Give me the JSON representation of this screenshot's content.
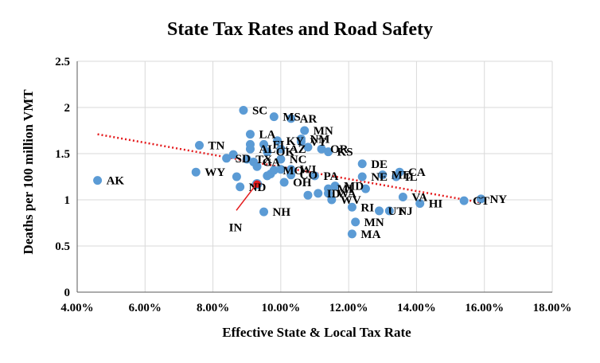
{
  "colors": {
    "point": "#5b9bd5",
    "highlight": "#e41a1c",
    "trendline": "#e41a1c",
    "grid": "#d9d9d9"
  },
  "chart_data": {
    "type": "scatter",
    "title": "State Tax Rates and Road Safety",
    "xlabel": "Effective State & Local Tax Rate",
    "ylabel": "Deaths per 100 million VMT",
    "xlim": [
      0.04,
      0.18
    ],
    "ylim": [
      0,
      2.5
    ],
    "x_ticks": [
      "4.00%",
      "6.00%",
      "8.00%",
      "10.00%",
      "12.00%",
      "14.00%",
      "16.00%",
      "18.00%"
    ],
    "y_ticks": [
      "0",
      "0.5",
      "1",
      "1.5",
      "2",
      "2.5"
    ],
    "grid": true,
    "trendline": {
      "style": "dotted",
      "x": [
        0.046,
        0.159
      ],
      "y": [
        1.71,
        0.97
      ]
    },
    "highlight": {
      "label": "IN",
      "x": 0.093,
      "y": 1.17
    },
    "points": [
      {
        "label": "AK",
        "x": 0.046,
        "y": 1.21
      },
      {
        "label": "WY",
        "x": 0.075,
        "y": 1.3
      },
      {
        "label": "TN",
        "x": 0.076,
        "y": 1.59
      },
      {
        "label": "SD",
        "x": 0.084,
        "y": 1.45
      },
      {
        "label": "ND",
        "x": 0.088,
        "y": 1.14
      },
      {
        "label": "",
        "x": 0.086,
        "y": 1.49
      },
      {
        "label": "",
        "x": 0.087,
        "y": 1.25
      },
      {
        "label": "SC",
        "x": 0.089,
        "y": 1.97
      },
      {
        "label": "TX",
        "x": 0.09,
        "y": 1.44
      },
      {
        "label": "AL",
        "x": 0.091,
        "y": 1.55
      },
      {
        "label": "LA",
        "x": 0.091,
        "y": 1.71
      },
      {
        "label": "",
        "x": 0.091,
        "y": 1.6
      },
      {
        "label": "GA",
        "x": 0.092,
        "y": 1.41
      },
      {
        "label": "",
        "x": 0.093,
        "y": 1.36
      },
      {
        "label": "NH",
        "x": 0.095,
        "y": 0.87
      },
      {
        "label": "FL",
        "x": 0.095,
        "y": 1.6
      },
      {
        "label": "OK",
        "x": 0.096,
        "y": 1.52
      },
      {
        "label": "",
        "x": 0.096,
        "y": 1.26
      },
      {
        "label": "",
        "x": 0.097,
        "y": 1.28
      },
      {
        "label": "MO",
        "x": 0.098,
        "y": 1.32
      },
      {
        "label": "MS",
        "x": 0.098,
        "y": 1.9
      },
      {
        "label": "KY",
        "x": 0.099,
        "y": 1.64
      },
      {
        "label": "AZ",
        "x": 0.1,
        "y": 1.55
      },
      {
        "label": "",
        "x": 0.1,
        "y": 1.33
      },
      {
        "label": "NC",
        "x": 0.1,
        "y": 1.44
      },
      {
        "label": "OH",
        "x": 0.101,
        "y": 1.19
      },
      {
        "label": "AR",
        "x": 0.103,
        "y": 1.88
      },
      {
        "label": "WI",
        "x": 0.103,
        "y": 1.33
      },
      {
        "label": "CO",
        "x": 0.103,
        "y": 1.27
      },
      {
        "label": "NM",
        "x": 0.106,
        "y": 1.66
      },
      {
        "label": "VT",
        "x": 0.106,
        "y": 1.63
      },
      {
        "label": "MN",
        "x": 0.107,
        "y": 1.75
      },
      {
        "label": "",
        "x": 0.108,
        "y": 1.57
      },
      {
        "label": "",
        "x": 0.108,
        "y": 1.05
      },
      {
        "label": "PA",
        "x": 0.11,
        "y": 1.26
      },
      {
        "label": "ID",
        "x": 0.111,
        "y": 1.07
      },
      {
        "label": "OR",
        "x": 0.112,
        "y": 1.55
      },
      {
        "label": "KS",
        "x": 0.114,
        "y": 1.52
      },
      {
        "label": "MI",
        "x": 0.114,
        "y": 1.12
      },
      {
        "label": "WA",
        "x": 0.114,
        "y": 1.07
      },
      {
        "label": "WV",
        "x": 0.115,
        "y": 1.0
      },
      {
        "label": "MD",
        "x": 0.116,
        "y": 1.15
      },
      {
        "label": "RI",
        "x": 0.121,
        "y": 0.92
      },
      {
        "label": "MA",
        "x": 0.121,
        "y": 0.63
      },
      {
        "label": "MN",
        "x": 0.122,
        "y": 0.76
      },
      {
        "label": "NE",
        "x": 0.124,
        "y": 1.25
      },
      {
        "label": "DE",
        "x": 0.124,
        "y": 1.39
      },
      {
        "label": "",
        "x": 0.125,
        "y": 1.12
      },
      {
        "label": "UT",
        "x": 0.129,
        "y": 0.88
      },
      {
        "label": "NJ",
        "x": 0.132,
        "y": 0.88
      },
      {
        "label": "ME",
        "x": 0.13,
        "y": 1.27
      },
      {
        "label": "IL",
        "x": 0.134,
        "y": 1.25
      },
      {
        "label": "CA",
        "x": 0.135,
        "y": 1.3
      },
      {
        "label": "VA",
        "x": 0.136,
        "y": 1.03
      },
      {
        "label": "HI",
        "x": 0.141,
        "y": 0.96
      },
      {
        "label": "CT",
        "x": 0.154,
        "y": 0.99
      },
      {
        "label": "NY",
        "x": 0.159,
        "y": 1.01
      }
    ]
  }
}
